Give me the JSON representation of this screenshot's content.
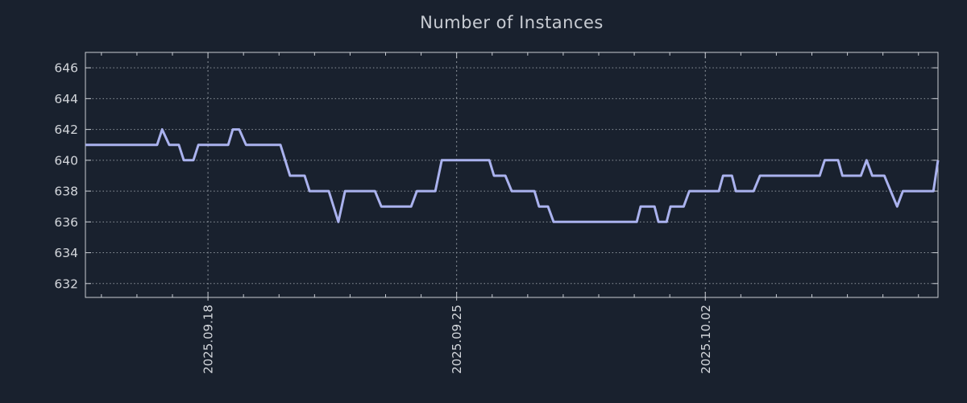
{
  "title": "Number of Instances",
  "colors": {
    "background": "#19212e",
    "border": "#c9cdd3",
    "grid": "#8f969e",
    "tick_label": "#d3d6db",
    "title": "#c8ccd3",
    "line": "#aab2ee"
  },
  "chart_data": {
    "type": "line",
    "title": "Number of Instances",
    "xlabel": "",
    "ylabel": "",
    "legend": "none",
    "x_unit": "days from left edge of plot",
    "xlim": [
      0,
      24
    ],
    "ylim": [
      631.1,
      647.0
    ],
    "y_ticks": [
      632,
      634,
      636,
      638,
      640,
      642,
      644,
      646
    ],
    "x_major_ticks": [
      {
        "t": 3.45,
        "label": "2025.09.18"
      },
      {
        "t": 10.45,
        "label": "2025.09.25"
      },
      {
        "t": 17.45,
        "label": "2025.10.02"
      }
    ],
    "x_minor_ticks": {
      "start": 0.45,
      "step": 1,
      "count": 24
    },
    "grid": {
      "horizontal": "dotted",
      "vertical": "dashed at major ticks"
    },
    "series": [
      {
        "name": "instances",
        "color": "#aab2ee",
        "width": 3,
        "points": [
          [
            0.0,
            641
          ],
          [
            2.02,
            641
          ],
          [
            2.16,
            642
          ],
          [
            2.36,
            641
          ],
          [
            2.63,
            641
          ],
          [
            2.77,
            640
          ],
          [
            3.04,
            640
          ],
          [
            3.18,
            641
          ],
          [
            4.02,
            641
          ],
          [
            4.15,
            642
          ],
          [
            4.33,
            642
          ],
          [
            4.52,
            641
          ],
          [
            5.49,
            641
          ],
          [
            5.76,
            639
          ],
          [
            6.17,
            639
          ],
          [
            6.31,
            638
          ],
          [
            6.85,
            638
          ],
          [
            7.12,
            636
          ],
          [
            7.31,
            638
          ],
          [
            8.15,
            638
          ],
          [
            8.33,
            637
          ],
          [
            9.17,
            637
          ],
          [
            9.33,
            638
          ],
          [
            9.85,
            638
          ],
          [
            10.03,
            640
          ],
          [
            11.37,
            640
          ],
          [
            11.5,
            639
          ],
          [
            11.82,
            639
          ],
          [
            12.0,
            638
          ],
          [
            12.64,
            638
          ],
          [
            12.77,
            637
          ],
          [
            13.02,
            637
          ],
          [
            13.18,
            636
          ],
          [
            15.52,
            636
          ],
          [
            15.63,
            637
          ],
          [
            16.02,
            637
          ],
          [
            16.13,
            636
          ],
          [
            16.36,
            636
          ],
          [
            16.47,
            637
          ],
          [
            16.84,
            637
          ],
          [
            17.0,
            638
          ],
          [
            17.83,
            638
          ],
          [
            17.95,
            639
          ],
          [
            18.2,
            639
          ],
          [
            18.31,
            638
          ],
          [
            18.81,
            638
          ],
          [
            18.99,
            639
          ],
          [
            20.67,
            639
          ],
          [
            20.81,
            640
          ],
          [
            21.19,
            640
          ],
          [
            21.31,
            639
          ],
          [
            21.83,
            639
          ],
          [
            21.99,
            640
          ],
          [
            22.15,
            639
          ],
          [
            22.49,
            639
          ],
          [
            22.85,
            637
          ],
          [
            23.01,
            638
          ],
          [
            23.87,
            638
          ],
          [
            24.0,
            640
          ]
        ]
      }
    ]
  }
}
